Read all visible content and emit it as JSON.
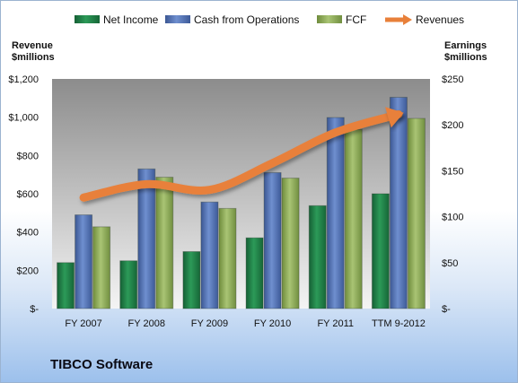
{
  "company": "TIBCO Software",
  "chart_data": {
    "type": "bar",
    "categories": [
      "FY 2007",
      "FY 2008",
      "FY 2009",
      "FY 2010",
      "FY 2011",
      "TTM 9-2012"
    ],
    "series": [
      {
        "name": "Net Income",
        "axis": "right",
        "color": "#1e7a45",
        "values": [
          50,
          52,
          62,
          77,
          112,
          125
        ]
      },
      {
        "name": "Cash from Operations",
        "axis": "right",
        "color": "#4f70b0",
        "values": [
          102,
          152,
          116,
          148,
          208,
          230
        ]
      },
      {
        "name": "FCF",
        "axis": "right",
        "color": "#8fae5a",
        "values": [
          89,
          143,
          109,
          142,
          195,
          207
        ]
      },
      {
        "name": "Revenues",
        "axis": "left",
        "type": "line",
        "color": "#e8803a",
        "values": [
          580,
          650,
          620,
          760,
          920,
          1015
        ]
      }
    ],
    "y_left": {
      "title_line1": "Revenue",
      "title_line2": "$millions",
      "min": 0,
      "max": 1200,
      "ticks": [
        0,
        200,
        400,
        600,
        800,
        1000,
        1200
      ],
      "tick_labels": [
        "$-",
        "$200",
        "$400",
        "$600",
        "$800",
        "$1,000",
        "$1,200"
      ]
    },
    "y_right": {
      "title_line1": "Earnings",
      "title_line2": "$millions",
      "min": 0,
      "max": 250,
      "ticks": [
        0,
        50,
        100,
        150,
        200,
        250
      ],
      "tick_labels": [
        "$-",
        "$50",
        "$100",
        "$150",
        "$200",
        "$250"
      ]
    },
    "legend_position": "top",
    "grid": false
  }
}
